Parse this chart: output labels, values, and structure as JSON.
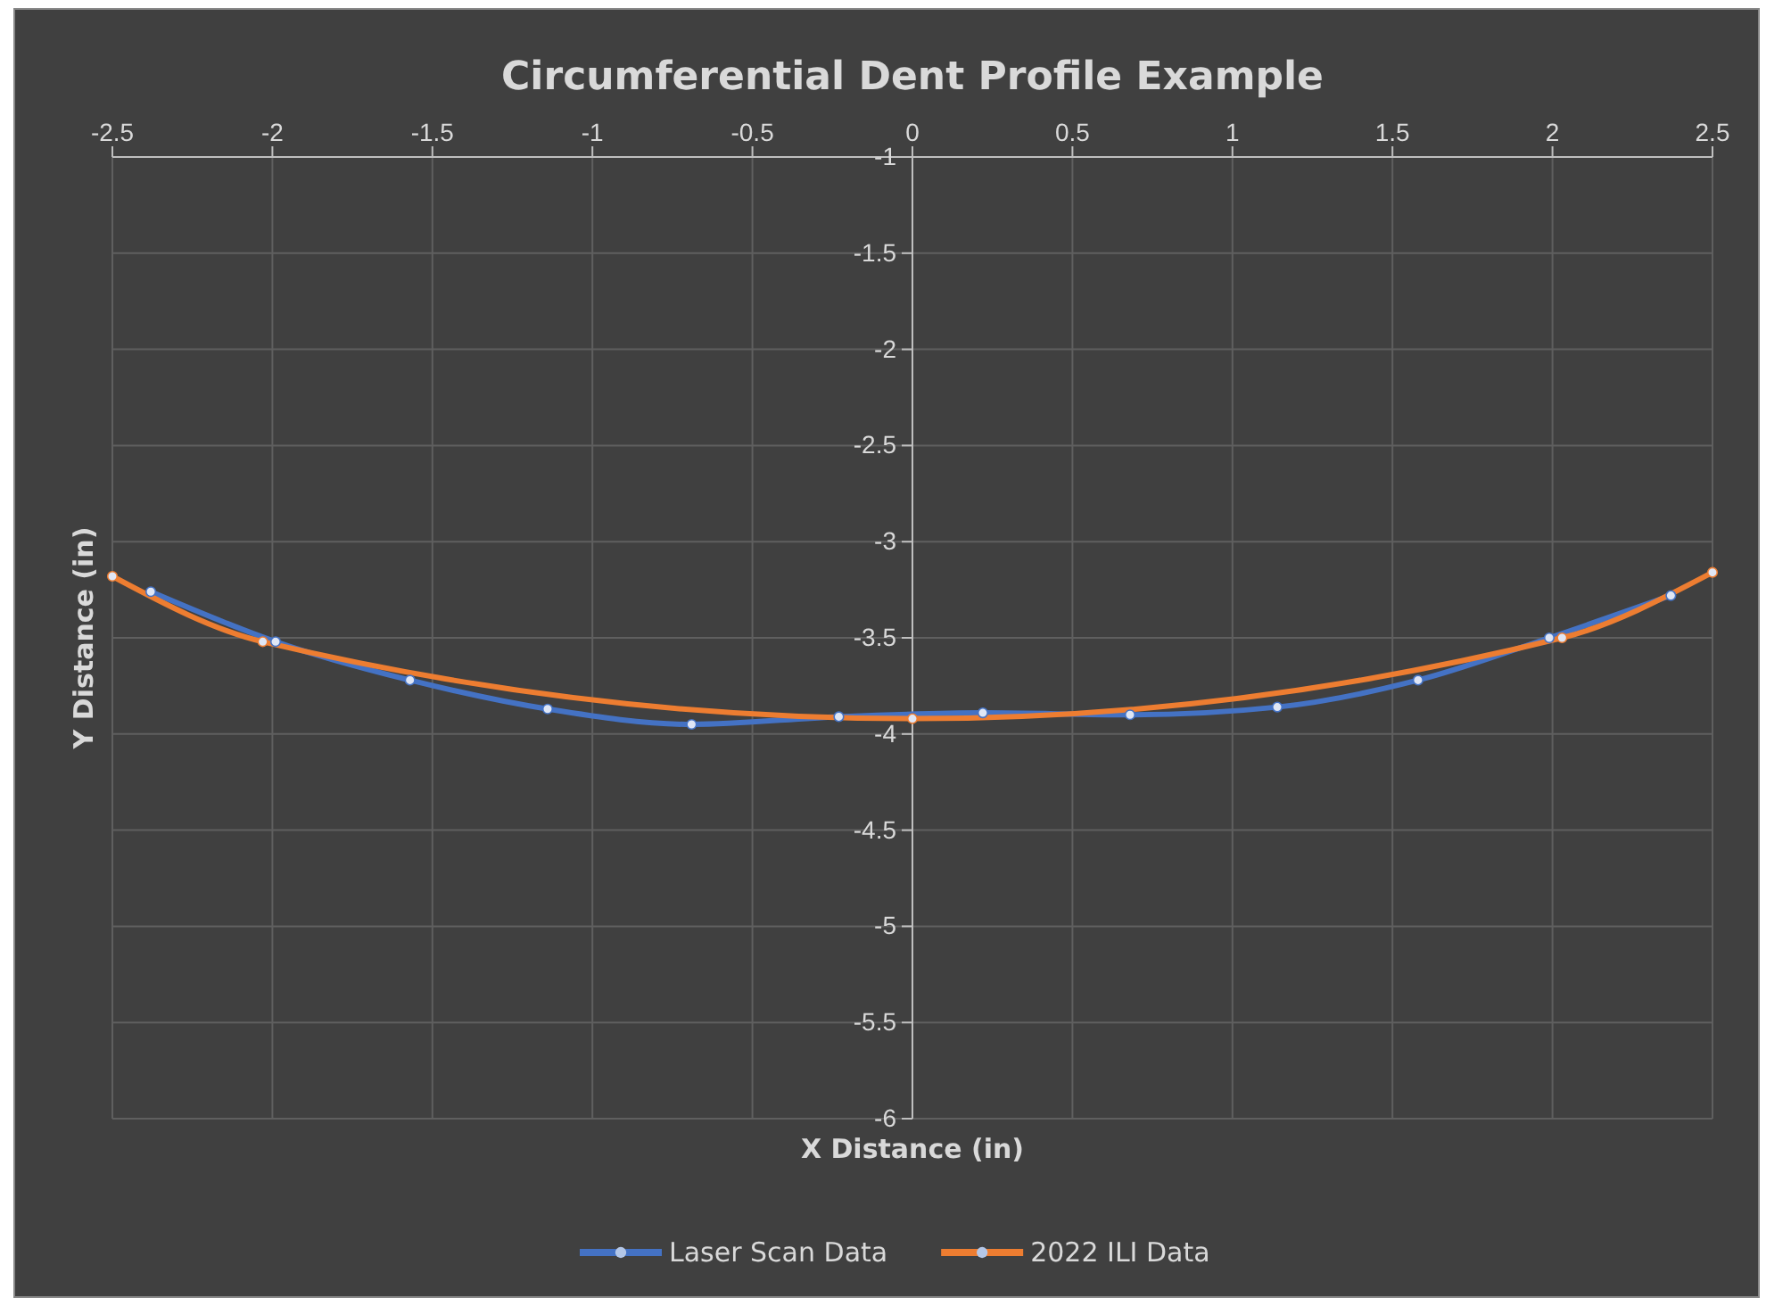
{
  "chart_data": {
    "type": "line",
    "title": "Circumferential Dent Profile Example",
    "xlabel": "X Distance (in)",
    "ylabel": "Y Distance (in)",
    "xlim": [
      -2.5,
      2.5
    ],
    "xticks": [
      -2.5,
      -2,
      -1.5,
      -1,
      -0.5,
      0,
      0.5,
      1,
      1.5,
      2,
      2.5
    ],
    "ylim": [
      -6,
      -1
    ],
    "yticks": [
      -6,
      -5.5,
      -5,
      -4.5,
      -4,
      -3.5,
      -3,
      -2.5,
      -2,
      -1.5,
      -1
    ],
    "grid": true,
    "legend": "bottom",
    "marker": "circle",
    "line_style": "solid",
    "series": [
      {
        "name": "Laser Scan Data",
        "color": "#4472c4",
        "x": [
          -2.38,
          -1.99,
          -1.57,
          -1.14,
          -0.69,
          -0.23,
          0.22,
          0.68,
          1.14,
          1.58,
          1.99,
          2.37
        ],
        "values": [
          -3.26,
          -3.52,
          -3.72,
          -3.87,
          -3.95,
          -3.91,
          -3.89,
          -3.9,
          -3.86,
          -3.72,
          -3.5,
          -3.28
        ]
      },
      {
        "name": "2022 ILI Data",
        "color": "#ed7d31",
        "x": [
          -2.5,
          -2.03,
          0,
          2.03,
          2.5
        ],
        "values": [
          -3.18,
          -3.52,
          -3.92,
          -3.5,
          -3.16
        ]
      }
    ]
  }
}
